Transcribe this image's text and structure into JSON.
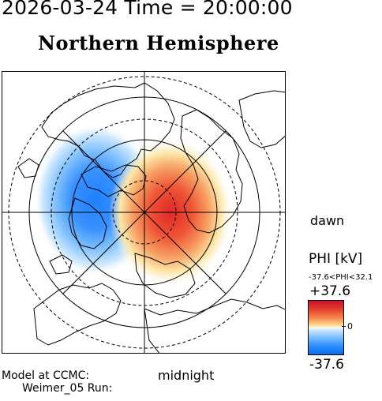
{
  "header": {
    "timestamp": "2026-03-24 Time = 20:00:00",
    "title": "Northern Hemisphere"
  },
  "orientation": {
    "dawn": "dawn",
    "midnight": "midnight"
  },
  "colorbar": {
    "label": "PHI [kV]",
    "range_text": "-37.6<PHI<32.1",
    "max_label": "+37.6",
    "zero_label": "0",
    "min_label": "-37.6",
    "positive_color": "#e02a2a",
    "negative_color": "#1e7fff"
  },
  "footer": {
    "model_line": "Model at CCMC:",
    "run_line": "Weimer_05 Run:"
  },
  "potential": {
    "min_kv": -37.6,
    "max_kv": 32.1
  }
}
